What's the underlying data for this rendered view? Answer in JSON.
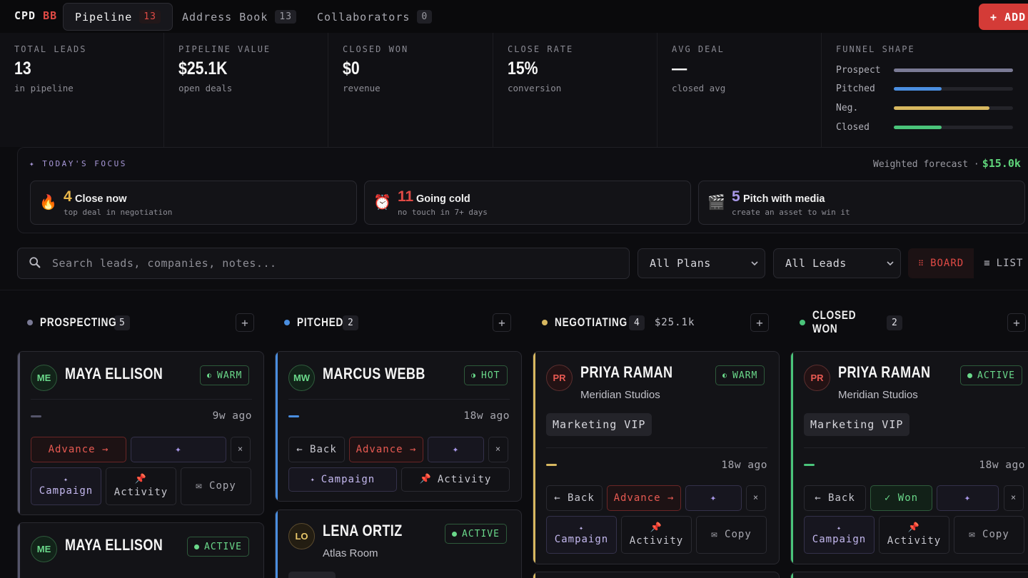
{
  "app": {
    "logo_main": "CPD",
    "logo_accent": "BB",
    "tabs": [
      {
        "label": "Pipeline",
        "count": "13"
      },
      {
        "label": "Address Book",
        "count": "13"
      },
      {
        "label": "Collaborators",
        "count": "0"
      }
    ],
    "add_label": "+ ADD"
  },
  "stats": [
    {
      "label": "TOTAL LEADS",
      "value": "13",
      "sub": "in pipeline"
    },
    {
      "label": "PIPELINE VALUE",
      "value": "$25.1K",
      "sub": "open deals"
    },
    {
      "label": "CLOSED WON",
      "value": "$0",
      "sub": "revenue"
    },
    {
      "label": "CLOSE RATE",
      "value": "15%",
      "sub": "conversion"
    },
    {
      "label": "AVG DEAL",
      "value": "—",
      "sub": "closed avg"
    }
  ],
  "funnel": {
    "label": "FUNNEL SHAPE",
    "rows": [
      {
        "name": "Prospect",
        "fraction": 1.0,
        "color": "#7a7a95"
      },
      {
        "name": "Pitched",
        "fraction": 0.4,
        "color": "#4a8ee0"
      },
      {
        "name": "Neg.",
        "fraction": 0.8,
        "color": "#d8b860"
      },
      {
        "name": "Closed",
        "fraction": 0.4,
        "color": "#4ac47a"
      }
    ]
  },
  "focus": {
    "label": "✦ TODAY'S FOCUS",
    "forecast_label": "Weighted forecast ·",
    "forecast_value": "$15.0k",
    "cards": [
      {
        "icon": "🔥",
        "icon_name": "fire-icon",
        "num": "4",
        "num_color": "#e8b64a",
        "title": "Close now",
        "desc": "top deal in negotiation"
      },
      {
        "icon": "⏰",
        "icon_name": "alarm-clock-icon",
        "num": "11",
        "num_color": "#e04a45",
        "title": "Going cold",
        "desc": "no touch in 7+ days"
      },
      {
        "icon": "🎬",
        "icon_name": "clapperboard-icon",
        "num": "5",
        "num_color": "#a898e8",
        "title": "Pitch with media",
        "desc": "create an asset to win it"
      }
    ]
  },
  "filters": {
    "search_placeholder": "Search leads, companies, notes...",
    "plan_select": "All Plans",
    "lead_select": "All Leads",
    "board_label": "BOARD",
    "list_label": "LIST"
  },
  "columns": [
    {
      "name": "PROSPECTING",
      "count": "5",
      "value": "",
      "color": "#7a7a95"
    },
    {
      "name": "PITCHED",
      "count": "2",
      "value": "",
      "color": "#4a8ee0"
    },
    {
      "name": "NEGOTIATING",
      "count": "4",
      "value": "$25.1k",
      "color": "#d8b860"
    },
    {
      "name": "CLOSED WON",
      "count": "2",
      "value": "",
      "color": "#4ac47a"
    }
  ],
  "cards": {
    "c1": {
      "initials": "ME",
      "name": "MAYA ELLISON",
      "badge": "WARM",
      "ago": "9w ago"
    },
    "c2": {
      "initials": "ME",
      "name": "MAYA ELLISON",
      "badge": "ACTIVE"
    },
    "c3": {
      "initials": "MW",
      "name": "MARCUS WEBB",
      "badge": "HOT",
      "ago": "18w ago"
    },
    "c4": {
      "initials": "LO",
      "name": "LENA ORTIZ",
      "company": "Atlas Room",
      "badge": "ACTIVE"
    },
    "c5": {
      "initials": "PR",
      "name": "PRIYA RAMAN",
      "company": "Meridian Studios",
      "badge": "WARM",
      "tag": "Marketing VIP",
      "ago": "18w ago"
    },
    "c6": {
      "initials": "PR",
      "name": "PRIYA RAMAN",
      "company": "Meridian Studios",
      "badge": "ACTIVE",
      "tag": "Marketing VIP",
      "ago": "18w ago"
    }
  },
  "actions": {
    "advance": "Advance →",
    "back": "← Back",
    "won": "✓ Won",
    "spark": "✦",
    "close": "×",
    "campaign_icon": "✦",
    "campaign": "Campaign",
    "activity_icon": "📌",
    "activity": "Activity",
    "copy": "✉ Copy"
  }
}
